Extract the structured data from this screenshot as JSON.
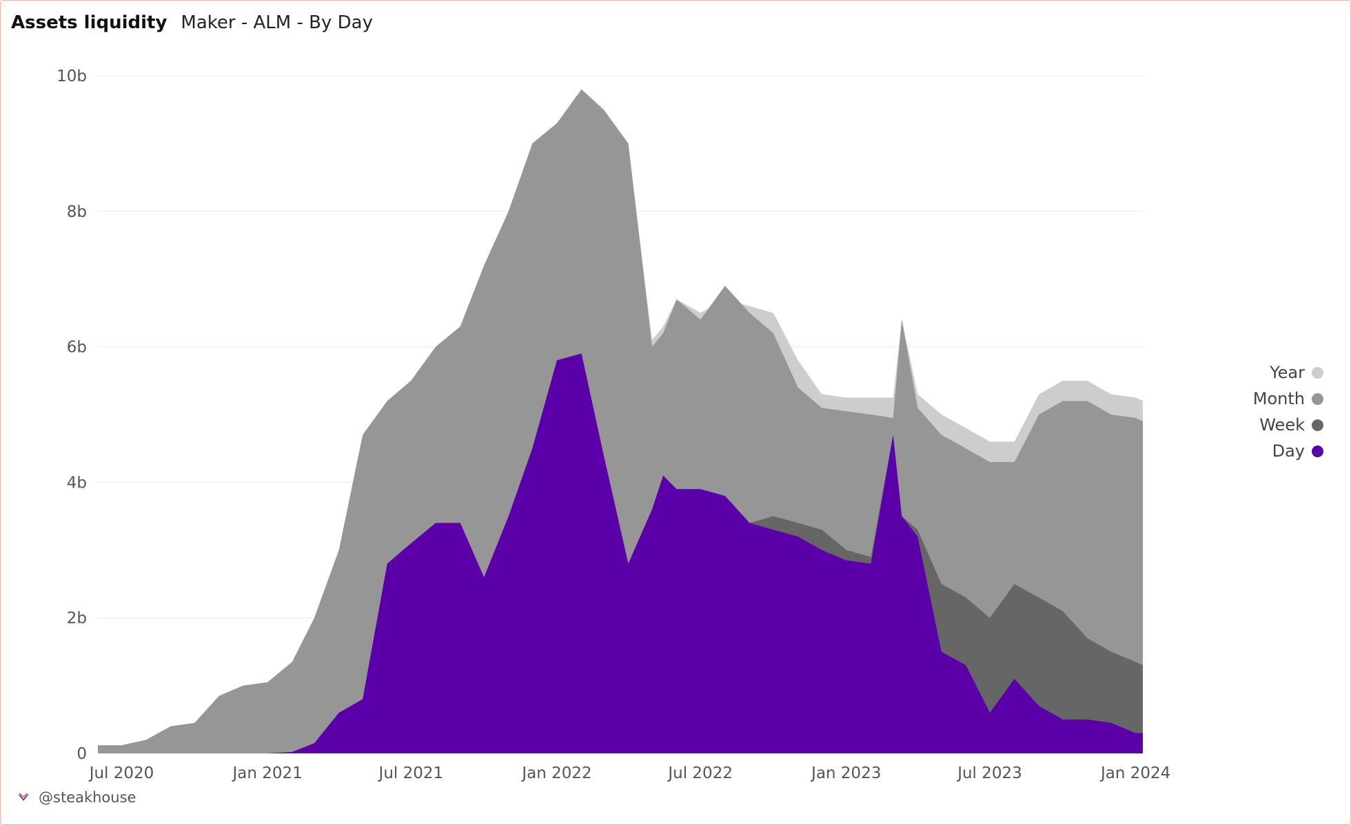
{
  "header": {
    "title": "Assets liquidity",
    "subtitle": "Maker - ALM - By Day"
  },
  "footer": {
    "handle": "@steakhouse",
    "logo_icon": "steakhouse-logo-icon"
  },
  "legend": [
    {
      "label": "Year",
      "color": "#cdcdcd"
    },
    {
      "label": "Month",
      "color": "#969696"
    },
    {
      "label": "Week",
      "color": "#666666"
    },
    {
      "label": "Day",
      "color": "#5b00a8"
    }
  ],
  "chart_data": {
    "type": "area",
    "stacked": false,
    "title": "Assets liquidity",
    "subtitle": "Maker - ALM - By Day",
    "xlabel": "",
    "ylabel": "",
    "x_ticks": [
      "Jul 2020",
      "Jan 2021",
      "Jul 2021",
      "Jan 2022",
      "Jul 2022",
      "Jan 2023",
      "Jul 2023",
      "Jan 2024"
    ],
    "y_ticks": [
      "0",
      "2b",
      "4b",
      "6b",
      "8b",
      "10b"
    ],
    "ylim": [
      0,
      10000000000
    ],
    "grid": true,
    "legend_position": "right",
    "x": [
      "2020-06-01",
      "2020-07-01",
      "2020-08-01",
      "2020-09-01",
      "2020-10-01",
      "2020-11-01",
      "2020-12-01",
      "2021-01-01",
      "2021-02-01",
      "2021-03-01",
      "2021-04-01",
      "2021-05-01",
      "2021-06-01",
      "2021-07-01",
      "2021-08-01",
      "2021-09-01",
      "2021-10-01",
      "2021-11-01",
      "2021-12-01",
      "2022-01-01",
      "2022-02-01",
      "2022-03-01",
      "2022-04-01",
      "2022-05-01",
      "2022-05-15",
      "2022-06-01",
      "2022-07-01",
      "2022-08-01",
      "2022-09-01",
      "2022-10-01",
      "2022-11-01",
      "2022-12-01",
      "2023-01-01",
      "2023-02-01",
      "2023-03-01",
      "2023-03-12",
      "2023-04-01",
      "2023-05-01",
      "2023-06-01",
      "2023-07-01",
      "2023-08-01",
      "2023-09-01",
      "2023-10-01",
      "2023-11-01",
      "2023-12-01",
      "2024-01-01",
      "2024-01-10"
    ],
    "series": [
      {
        "name": "Year",
        "color": "#cdcdcd",
        "values": [
          0.12,
          0.12,
          0.2,
          0.4,
          0.45,
          0.85,
          1.0,
          1.05,
          1.35,
          2.0,
          3.0,
          4.7,
          5.2,
          5.5,
          6.0,
          6.3,
          7.2,
          8.0,
          9.0,
          9.3,
          9.8,
          9.5,
          9.0,
          6.1,
          6.3,
          6.7,
          6.5,
          6.7,
          6.6,
          6.5,
          5.8,
          5.3,
          5.25,
          5.25,
          5.25,
          6.4,
          5.3,
          5.0,
          4.8,
          4.6,
          4.6,
          5.3,
          5.5,
          5.5,
          5.3,
          5.25,
          5.2
        ]
      },
      {
        "name": "Month",
        "color": "#969696",
        "values": [
          0.12,
          0.12,
          0.2,
          0.4,
          0.45,
          0.85,
          1.0,
          1.05,
          1.35,
          2.0,
          3.0,
          4.7,
          5.2,
          5.5,
          6.0,
          6.3,
          7.2,
          8.0,
          9.0,
          9.3,
          9.8,
          9.5,
          9.0,
          6.0,
          6.2,
          6.7,
          6.4,
          6.9,
          6.5,
          6.2,
          5.4,
          5.1,
          5.05,
          5.0,
          4.95,
          6.4,
          5.1,
          4.7,
          4.5,
          4.3,
          4.3,
          5.0,
          5.2,
          5.2,
          5.0,
          4.95,
          4.9
        ]
      },
      {
        "name": "Week",
        "color": "#666666",
        "values": [
          0,
          0,
          0,
          0,
          0,
          0,
          0,
          0,
          0.02,
          0.15,
          0.6,
          0.8,
          2.8,
          3.1,
          3.4,
          3.4,
          2.6,
          3.5,
          4.5,
          5.8,
          5.9,
          4.4,
          2.8,
          3.6,
          4.1,
          3.9,
          3.9,
          3.8,
          3.4,
          3.5,
          3.4,
          3.3,
          3.0,
          2.9,
          4.7,
          3.5,
          3.3,
          2.5,
          2.3,
          2.0,
          2.5,
          2.3,
          2.1,
          1.7,
          1.5,
          1.35,
          1.3
        ]
      },
      {
        "name": "Day",
        "color": "#5b00a8",
        "values": [
          0,
          0,
          0,
          0,
          0,
          0,
          0,
          0,
          0.02,
          0.15,
          0.6,
          0.8,
          2.8,
          3.1,
          3.4,
          3.4,
          2.6,
          3.5,
          4.5,
          5.8,
          5.9,
          4.4,
          2.8,
          3.6,
          4.1,
          3.9,
          3.9,
          3.8,
          3.4,
          3.3,
          3.2,
          3.0,
          2.85,
          2.8,
          4.7,
          3.5,
          3.2,
          1.5,
          1.3,
          0.6,
          1.1,
          0.7,
          0.5,
          0.5,
          0.45,
          0.3,
          0.3
        ]
      }
    ],
    "value_unit": "billions"
  }
}
